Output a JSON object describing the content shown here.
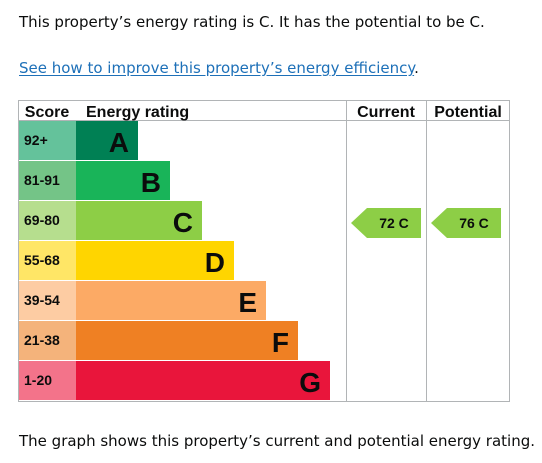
{
  "intro": "This property’s energy rating is C. It has the potential to be C.",
  "link": {
    "text": "See how to improve this property’s energy efficiency",
    "suffix": "."
  },
  "outro": "The graph shows this property’s current and potential energy rating.",
  "chart_data": {
    "type": "bar",
    "headers": {
      "score": "Score",
      "rating": "Energy rating",
      "current": "Current",
      "potential": "Potential"
    },
    "bands": [
      {
        "score": "92+",
        "letter": "A",
        "color": "#008054",
        "score_bg": "#64c29b"
      },
      {
        "score": "81-91",
        "letter": "B",
        "color": "#19b459",
        "score_bg": "#74c487"
      },
      {
        "score": "69-80",
        "letter": "C",
        "color": "#8dce46",
        "score_bg": "#b6de8e"
      },
      {
        "score": "55-68",
        "letter": "D",
        "color": "#ffd500",
        "score_bg": "#ffe666"
      },
      {
        "score": "39-54",
        "letter": "E",
        "color": "#fcaa65",
        "score_bg": "#fdcca3"
      },
      {
        "score": "21-38",
        "letter": "F",
        "color": "#ef8023",
        "score_bg": "#f4b37b"
      },
      {
        "score": "1-20",
        "letter": "G",
        "color": "#e9153b",
        "score_bg": "#f3738a"
      }
    ],
    "current": {
      "value": 72,
      "letter": "C",
      "label": "72 C",
      "color": "#8dce46"
    },
    "potential": {
      "value": 76,
      "letter": "C",
      "label": "76 C",
      "color": "#8dce46"
    }
  }
}
